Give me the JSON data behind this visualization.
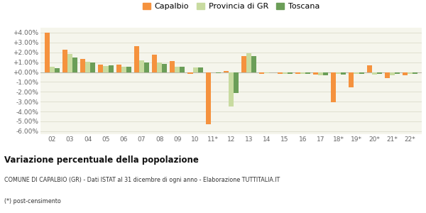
{
  "years": [
    "02",
    "03",
    "04",
    "05",
    "06",
    "07",
    "08",
    "09",
    "10",
    "11*",
    "12",
    "13",
    "14",
    "15",
    "16",
    "17",
    "18*",
    "19*",
    "20*",
    "21*",
    "22*"
  ],
  "capalbio": [
    4.0,
    2.25,
    1.3,
    0.75,
    0.75,
    2.6,
    1.75,
    1.1,
    -0.2,
    -5.3,
    0.1,
    1.65,
    -0.15,
    -0.15,
    -0.2,
    -0.25,
    -3.05,
    -1.55,
    0.7,
    -0.6,
    -0.35
  ],
  "provincia_gr": [
    0.55,
    1.85,
    1.05,
    0.6,
    0.55,
    1.2,
    0.95,
    0.55,
    0.5,
    -0.05,
    -3.5,
    1.9,
    -0.1,
    -0.2,
    -0.2,
    -0.3,
    -0.2,
    -0.2,
    -0.25,
    -0.3,
    -0.2
  ],
  "toscana": [
    0.4,
    1.45,
    0.95,
    0.65,
    0.55,
    1.0,
    0.85,
    0.55,
    0.5,
    -0.1,
    -2.15,
    1.65,
    0.0,
    -0.2,
    -0.2,
    -0.3,
    -0.25,
    -0.2,
    -0.2,
    -0.2,
    -0.15
  ],
  "color_capalbio": "#f5923e",
  "color_provincia": "#c8dba0",
  "color_toscana": "#6b9e58",
  "bg_color": "#f5f5ec",
  "grid_color": "#e0e0d0",
  "ylim": [
    -6.3,
    4.5
  ],
  "yticks": [
    -6.0,
    -5.0,
    -4.0,
    -3.0,
    -2.0,
    -1.0,
    0.0,
    1.0,
    2.0,
    3.0,
    4.0
  ],
  "title": "Variazione percentuale della popolazione",
  "subtitle": "COMUNE DI CAPALBIO (GR) - Dati ISTAT al 31 dicembre di ogni anno - Elaborazione TUTTITALIA.IT",
  "footnote": "(*) post-censimento"
}
